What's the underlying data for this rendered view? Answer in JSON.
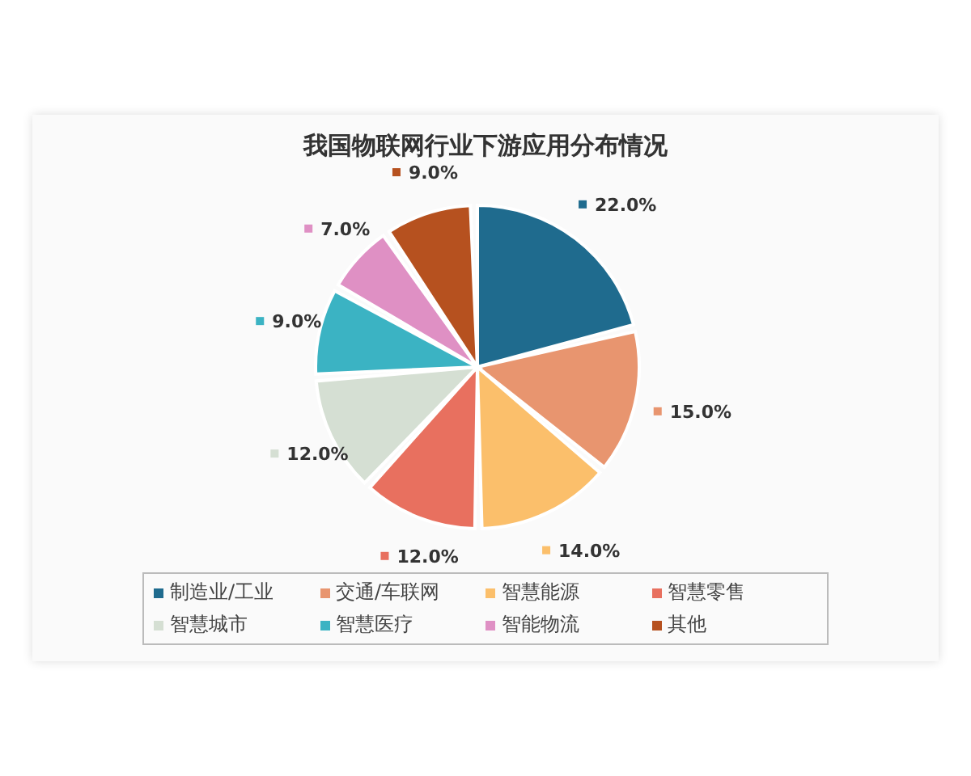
{
  "chart_data": {
    "type": "pie",
    "title": "我国物联网行业下游应用分布情况",
    "categories": [
      "制造业/工业",
      "交通/车联网",
      "智慧能源",
      "智慧零售",
      "智慧城市",
      "智慧医疗",
      "智能物流",
      "其他"
    ],
    "values": [
      22,
      15,
      14,
      12,
      12,
      9,
      7,
      9
    ],
    "value_labels": [
      "22.0%",
      "15.0%",
      "14.0%",
      "12.0%",
      "12.0%",
      "9.0%",
      "7.0%",
      "9.0%"
    ],
    "colors": [
      "#1f6b8e",
      "#e8956f",
      "#fbbf6b",
      "#e8705f",
      "#d5dfd3",
      "#3bb3c3",
      "#df90c4",
      "#b6511f"
    ],
    "legend": "bottom"
  }
}
